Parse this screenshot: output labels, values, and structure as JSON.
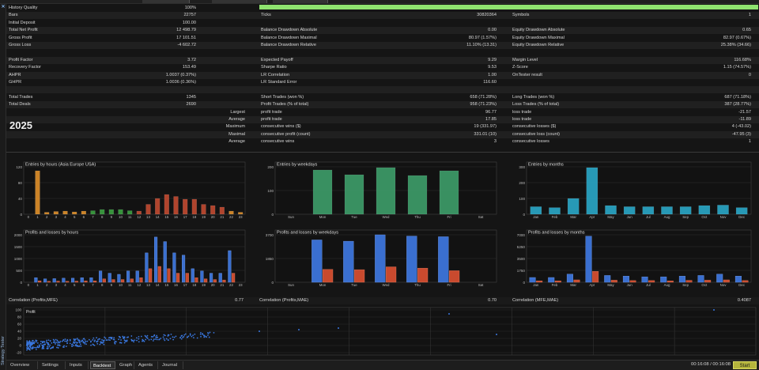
{
  "report": {
    "year": "2025",
    "col1": [
      {
        "label": "History Quality",
        "value": "100%"
      },
      {
        "label": "Bars",
        "value": "22757"
      },
      {
        "label": "Initial Deposit",
        "value": "100.00"
      },
      {
        "label": "Total Net Profit",
        "value": "12 498.79"
      },
      {
        "label": "Gross Profit",
        "value": "17 101.51"
      },
      {
        "label": "Gross Loss",
        "value": "-4 602.72"
      },
      {
        "label": "",
        "value": ""
      },
      {
        "label": "Profit Factor",
        "value": "3.72"
      },
      {
        "label": "Recovery Factor",
        "value": "153.49"
      },
      {
        "label": "AHPR",
        "value": "1.0037 (0.37%)"
      },
      {
        "label": "GHPR",
        "value": "1.0036 (0.36%)"
      },
      {
        "label": "",
        "value": ""
      },
      {
        "label": "Total Trades",
        "value": "1345"
      },
      {
        "label": "Total Deals",
        "value": "2690"
      },
      {
        "label": "Largest",
        "value": ""
      },
      {
        "label": "Average",
        "value": ""
      },
      {
        "label": "Maximum",
        "value": ""
      },
      {
        "label": "Maximal",
        "value": ""
      },
      {
        "label": "Average",
        "value": ""
      }
    ],
    "col2": [
      {
        "label": "",
        "value": ""
      },
      {
        "label": "Ticks",
        "value": "30820364"
      },
      {
        "label": "",
        "value": ""
      },
      {
        "label": "Balance Drawdown Absolute",
        "value": "0.00"
      },
      {
        "label": "Balance Drawdown Maximal",
        "value": "80.97 (1.57%)"
      },
      {
        "label": "Balance Drawdown Relative",
        "value": "11.10% (13.31)"
      },
      {
        "label": "",
        "value": ""
      },
      {
        "label": "Expected Payoff",
        "value": "9.29"
      },
      {
        "label": "Sharpe Ratio",
        "value": "9.53"
      },
      {
        "label": "LR Correlation",
        "value": "1.00"
      },
      {
        "label": "LR Standard Error",
        "value": "116.60"
      },
      {
        "label": "",
        "value": ""
      },
      {
        "label": "Short Trades (won %)",
        "value": "658 (71.28%)"
      },
      {
        "label": "Profit Trades (% of total)",
        "value": "958 (71.23%)"
      },
      {
        "label": "profit trade",
        "value": "96.77"
      },
      {
        "label": "profit trade",
        "value": "17.85"
      },
      {
        "label": "consecutive wins ($)",
        "value": "19 (331.97)"
      },
      {
        "label": "consecutive profit (count)",
        "value": "331.01 (10)"
      },
      {
        "label": "consecutive wins",
        "value": "3"
      }
    ],
    "col3": [
      {
        "label": "",
        "value": ""
      },
      {
        "label": "Symbols",
        "value": "1"
      },
      {
        "label": "",
        "value": ""
      },
      {
        "label": "Equity Drawdown Absolute",
        "value": "0.65"
      },
      {
        "label": "Equity Drawdown Maximal",
        "value": "82.97 (0.67%)"
      },
      {
        "label": "Equity Drawdown Relative",
        "value": "25.38% (34.66)"
      },
      {
        "label": "",
        "value": ""
      },
      {
        "label": "Margin Level",
        "value": "116.68%"
      },
      {
        "label": "Z-Score",
        "value": "1.15 (74.57%)"
      },
      {
        "label": "OnTester result",
        "value": "0"
      },
      {
        "label": "",
        "value": ""
      },
      {
        "label": "",
        "value": ""
      },
      {
        "label": "Long Trades (won %)",
        "value": "687 (71.18%)"
      },
      {
        "label": "Loss Trades (% of total)",
        "value": "387 (28.77%)"
      },
      {
        "label": "loss trade",
        "value": "-21.57"
      },
      {
        "label": "loss trade",
        "value": "-11.89"
      },
      {
        "label": "consecutive losses ($)",
        "value": "4 (-43.02)"
      },
      {
        "label": "consecutive loss (count)",
        "value": "-47.95 (3)"
      },
      {
        "label": "consecutive losses",
        "value": "1"
      }
    ]
  },
  "chart_data": [
    {
      "type": "bar",
      "title": "Entries by hours (Asia Europe USA)",
      "categories": [
        "0",
        "1",
        "2",
        "3",
        "4",
        "5",
        "6",
        "7",
        "8",
        "9",
        "10",
        "11",
        "12",
        "13",
        "14",
        "15",
        "16",
        "17",
        "18",
        "19",
        "20",
        "21",
        "22",
        "23"
      ],
      "values": [
        0,
        110,
        5,
        7,
        8,
        6,
        8,
        9,
        12,
        12,
        12,
        9,
        8,
        25,
        40,
        50,
        45,
        38,
        38,
        25,
        22,
        18,
        8,
        5
      ],
      "ylim": [
        0,
        120
      ],
      "ticks": [
        "0",
        "40",
        "80",
        "120"
      ],
      "colors": [
        "#e0902a",
        "#e0902a",
        "#e0902a",
        "#e0902a",
        "#e0902a",
        "#e0902a",
        "#e0902a",
        "#3aa040",
        "#3aa040",
        "#3aa040",
        "#3aa040",
        "#3aa040",
        "#c24a30",
        "#c24a30",
        "#c24a30",
        "#c24a30",
        "#c24a30",
        "#c24a30",
        "#c24a30",
        "#c24a30",
        "#c24a30",
        "#c24a30",
        "#e0902a",
        "#e0902a"
      ]
    },
    {
      "type": "bar",
      "title": "Entries by weekdays",
      "categories": [
        "Sun",
        "Mon",
        "Tue",
        "Wed",
        "Thu",
        "Fri",
        "Sat"
      ],
      "values": [
        0,
        280,
        250,
        295,
        245,
        275,
        0
      ],
      "ylim": [
        0,
        300
      ],
      "ticks": [
        "0",
        "100",
        "200"
      ],
      "colors": [
        "#3e9e6a"
      ]
    },
    {
      "type": "bar",
      "title": "Entries by months",
      "categories": [
        "Jan",
        "Feb",
        "Mar",
        "Apr",
        "May",
        "Jun",
        "Jul",
        "Aug",
        "Sep",
        "Oct",
        "Nov",
        "Dec"
      ],
      "values": [
        48,
        42,
        100,
        295,
        55,
        48,
        48,
        48,
        48,
        55,
        58,
        42
      ],
      "ylim": [
        0,
        300
      ],
      "ticks": [
        "0",
        "100",
        "200",
        "300"
      ],
      "colors": [
        "#2aa8c8"
      ]
    },
    {
      "type": "bar",
      "title": "Profits and losses by hours",
      "categories": [
        "0",
        "1",
        "2",
        "3",
        "4",
        "5",
        "6",
        "7",
        "8",
        "9",
        "10",
        "11",
        "12",
        "13",
        "14",
        "15",
        "16",
        "17",
        "18",
        "19",
        "20",
        "21",
        "22",
        "23"
      ],
      "series": [
        {
          "name": "",
          "values": [
            0,
            200,
            150,
            160,
            180,
            180,
            200,
            200,
            500,
            400,
            350,
            500,
            500,
            1300,
            2000,
            1800,
            1300,
            1200,
            600,
            500,
            400,
            400,
            1400,
            0
          ]
        },
        {
          "name": "",
          "values": [
            0,
            60,
            40,
            50,
            40,
            50,
            60,
            60,
            150,
            120,
            120,
            150,
            200,
            600,
            700,
            600,
            400,
            400,
            200,
            150,
            120,
            100,
            400,
            0
          ]
        }
      ],
      "ylim": [
        0,
        2100
      ],
      "ticks": [
        "0",
        "500",
        "1000",
        "1500",
        "2000"
      ]
    },
    {
      "type": "bar",
      "title": "Profits and losses by weekdays",
      "categories": [
        "Sun",
        "Mon",
        "Tue",
        "Wed",
        "Thu",
        "Fri",
        "Sat"
      ],
      "series": [
        {
          "name": "",
          "values": [
            0,
            3300,
            3200,
            3700,
            3600,
            3550,
            0
          ]
        },
        {
          "name": "",
          "values": [
            0,
            1000,
            980,
            1200,
            1100,
            900,
            0
          ]
        }
      ],
      "ylim": [
        0,
        3700
      ],
      "ticks": [
        "0",
        "1850",
        "3700"
      ]
    },
    {
      "type": "bar",
      "title": "Profits and losses by months",
      "categories": [
        "Jan",
        "Feb",
        "Mar",
        "Apr",
        "May",
        "Jun",
        "Jul",
        "Aug",
        "Sep",
        "Oct",
        "Nov",
        "Dec"
      ],
      "series": [
        {
          "name": "",
          "values": [
            700,
            700,
            1200,
            6800,
            1000,
            900,
            800,
            800,
            900,
            1000,
            1200,
            900
          ]
        },
        {
          "name": "",
          "values": [
            200,
            200,
            350,
            1600,
            300,
            250,
            250,
            200,
            280,
            300,
            350,
            250
          ]
        }
      ],
      "ylim": [
        0,
        7000
      ],
      "ticks": [
        "0",
        "1750",
        "3500",
        "5250",
        "7000"
      ]
    }
  ],
  "correlations": [
    {
      "label": "Correlation (Profits,MFE)",
      "value": "0.77"
    },
    {
      "label": "Correlation (Profits,MAE)",
      "value": "0.70"
    },
    {
      "label": "Correlation (MFE,MAE)",
      "value": "0.4087"
    }
  ],
  "scatter": {
    "label": "Profit",
    "ticks": [
      "100",
      "80",
      "60",
      "40",
      "20",
      "0",
      "-20"
    ]
  },
  "tabs": [
    "Overview",
    "Settings",
    "Inputs",
    "Backtest",
    "Graph",
    "Agents",
    "Journal"
  ],
  "active_tab": "Backtest",
  "timer": "00:16:08 / 00:16:08",
  "start_label": "Start",
  "sidebar_label": "Strategy Tester",
  "colors": {
    "profit_bar": "#3a6fd0",
    "loss_bar": "#c94a2e",
    "history_quality": "#8fe36f",
    "start_button": "#b5b53c"
  }
}
